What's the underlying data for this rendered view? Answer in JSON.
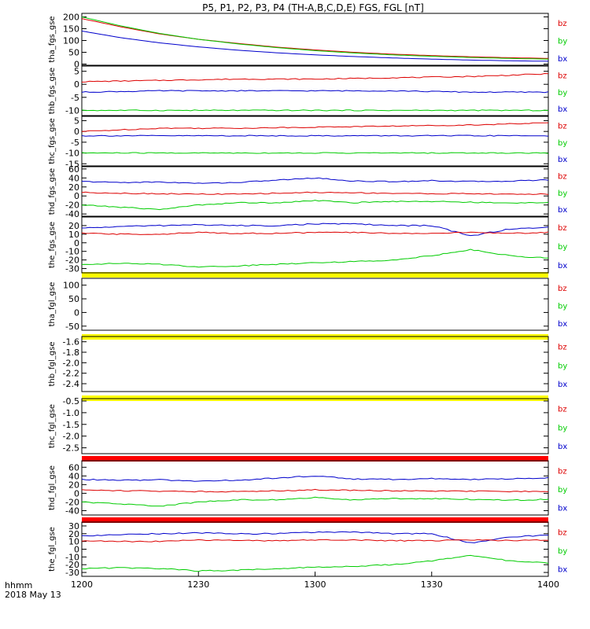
{
  "title": "P5, P1, P2, P3, P4 (TH-A,B,C,D,E) FGS, FGL [nT]",
  "x_axis": {
    "tick_labels": [
      "1200",
      "1230",
      "1300",
      "1330",
      "1400"
    ],
    "caption_line1": "hhmm",
    "caption_line2": "2018 May 13"
  },
  "colors": {
    "bz": "#dd0000",
    "by": "#00cc00",
    "bx": "#0000cc",
    "flag_yellow": "#ffff00",
    "flag_red": "#ff0000",
    "frame": "#000000"
  },
  "chart_data": [
    {
      "type": "line",
      "panel": "tha_fgs_gse",
      "ylabel": "tha_fgs_gse",
      "ylim": [
        -5,
        215
      ],
      "ytick_labels": [
        "0",
        "50",
        "100",
        "150",
        "200"
      ],
      "legend": [
        "bz",
        "by",
        "bx"
      ],
      "x_range": [
        "12:00",
        "14:00"
      ],
      "x": [
        "12:00",
        "12:10",
        "12:20",
        "12:30",
        "12:40",
        "12:50",
        "13:00",
        "13:10",
        "13:20",
        "13:30",
        "13:40",
        "13:50",
        "14:00"
      ],
      "series": [
        {
          "name": "bz",
          "values": [
            193,
            158,
            128,
            105,
            88,
            72,
            60,
            50,
            42,
            36,
            31,
            27,
            24
          ]
        },
        {
          "name": "by",
          "values": [
            200,
            162,
            130,
            105,
            86,
            70,
            57,
            47,
            39,
            33,
            28,
            24,
            21
          ]
        },
        {
          "name": "bx",
          "values": [
            140,
            112,
            90,
            73,
            59,
            48,
            39,
            32,
            26,
            21,
            17,
            14,
            12
          ]
        }
      ]
    },
    {
      "type": "line",
      "panel": "thb_fgs_gse",
      "ylabel": "thb_fgs_gse",
      "ylim": [
        -12,
        7
      ],
      "ytick_labels": [
        "5",
        "0",
        "-5",
        "-10"
      ],
      "legend": [
        "bz",
        "by",
        "bx"
      ],
      "x": [
        "12:00",
        "12:20",
        "12:40",
        "13:00",
        "13:20",
        "13:40",
        "14:00"
      ],
      "series": [
        {
          "name": "bz",
          "values": [
            1,
            1.5,
            2,
            2,
            2.5,
            3,
            4
          ]
        },
        {
          "name": "bx",
          "values": [
            -3,
            -2.5,
            -2.5,
            -2.5,
            -2.5,
            -3,
            -3
          ]
        },
        {
          "name": "by",
          "values": [
            -10,
            -10,
            -10,
            -10,
            -10,
            -10,
            -10
          ]
        }
      ]
    },
    {
      "type": "line",
      "panel": "thc_fgs_gse",
      "ylabel": "thc_fgs_gse",
      "ylim": [
        -16,
        7
      ],
      "ytick_labels": [
        "5",
        "0",
        "-5",
        "-10",
        "-15"
      ],
      "legend": [
        "bz",
        "by",
        "bx"
      ],
      "x": [
        "12:00",
        "12:20",
        "12:40",
        "13:00",
        "13:20",
        "13:40",
        "14:00"
      ],
      "series": [
        {
          "name": "bz",
          "values": [
            0,
            1.5,
            1.5,
            2,
            2.5,
            3,
            4
          ]
        },
        {
          "name": "bx",
          "values": [
            -2,
            -2,
            -2,
            -2,
            -2,
            -2,
            -2
          ]
        },
        {
          "name": "by",
          "values": [
            -10,
            -10,
            -10,
            -10,
            -10,
            -10,
            -10
          ]
        }
      ]
    },
    {
      "type": "line",
      "panel": "thd_fgs_gse",
      "ylabel": "thd_fgs_gse",
      "ylim": [
        -45,
        65
      ],
      "ytick_labels": [
        "60",
        "40",
        "20",
        "0",
        "-20",
        "-40"
      ],
      "legend": [
        "bz",
        "by",
        "bx"
      ],
      "x": [
        "12:00",
        "12:10",
        "12:20",
        "12:30",
        "12:40",
        "12:50",
        "13:00",
        "13:10",
        "13:20",
        "13:30",
        "13:40",
        "13:50",
        "14:00"
      ],
      "series": [
        {
          "name": "bx",
          "values": [
            32,
            30,
            31,
            28,
            30,
            35,
            40,
            33,
            32,
            34,
            32,
            33,
            36
          ]
        },
        {
          "name": "bz",
          "values": [
            8,
            6,
            5,
            4,
            4,
            6,
            8,
            7,
            6,
            5,
            5,
            4,
            4
          ]
        },
        {
          "name": "by",
          "values": [
            -20,
            -25,
            -30,
            -20,
            -15,
            -15,
            -10,
            -15,
            -12,
            -12,
            -14,
            -16,
            -14
          ]
        }
      ]
    },
    {
      "type": "line",
      "panel": "the_fgs_gse",
      "ylabel": "the_fgs_gse",
      "ylim": [
        -35,
        30
      ],
      "ytick_labels": [
        "20",
        "10",
        "0",
        "-10",
        "-20",
        "-30"
      ],
      "legend": [
        "bz",
        "by",
        "bx"
      ],
      "x": [
        "12:00",
        "12:10",
        "12:20",
        "12:30",
        "12:40",
        "12:50",
        "13:00",
        "13:10",
        "13:20",
        "13:30",
        "13:40",
        "13:50",
        "14:00"
      ],
      "series": [
        {
          "name": "bx",
          "values": [
            17,
            19,
            20,
            21,
            20,
            20,
            22,
            22,
            20,
            20,
            8,
            16,
            18
          ]
        },
        {
          "name": "bz",
          "values": [
            11,
            10,
            10,
            12,
            11,
            11,
            12,
            12,
            11,
            11,
            12,
            11,
            12
          ]
        },
        {
          "name": "by",
          "values": [
            -25,
            -24,
            -25,
            -28,
            -27,
            -25,
            -23,
            -22,
            -20,
            -15,
            -8,
            -15,
            -18
          ]
        }
      ]
    },
    {
      "type": "line",
      "panel": "tha_fgl_gse",
      "ylabel": "tha_fgl_gse",
      "ylim": [
        -65,
        125
      ],
      "ytick_labels": [
        "100",
        "50",
        "0",
        "-50"
      ],
      "legend": [
        "bz",
        "by",
        "bx"
      ],
      "series": []
    },
    {
      "type": "line",
      "panel": "thb_fgl_gse",
      "ylabel": "thb_fgl_gse",
      "ylim": [
        -2.55,
        -1.5
      ],
      "ytick_labels": [
        "-1.6",
        "-1.8",
        "-2.0",
        "-2.2",
        "-2.4"
      ],
      "legend": [
        "bz",
        "by",
        "bx"
      ],
      "series": []
    },
    {
      "type": "line",
      "panel": "thc_fgl_gse",
      "ylabel": "thc_fgl_gse",
      "ylim": [
        -2.75,
        -0.4
      ],
      "ytick_labels": [
        "-0.5",
        "-1.0",
        "-1.5",
        "-2.0",
        "-2.5"
      ],
      "legend": [
        "bz",
        "by",
        "bx"
      ],
      "series": []
    },
    {
      "type": "line",
      "panel": "thd_fgl_gse",
      "ylabel": "thd_fgl_gse",
      "ylim": [
        -50,
        75
      ],
      "ytick_labels": [
        "60",
        "40",
        "20",
        "0",
        "-20",
        "-40"
      ],
      "legend": [
        "bz",
        "by",
        "bx"
      ],
      "x": [
        "12:00",
        "12:10",
        "12:20",
        "12:30",
        "12:40",
        "12:50",
        "13:00",
        "13:10",
        "13:20",
        "13:30",
        "13:40",
        "13:50",
        "14:00"
      ],
      "series": [
        {
          "name": "bx",
          "values": [
            32,
            30,
            31,
            28,
            30,
            35,
            40,
            33,
            32,
            34,
            32,
            33,
            36
          ]
        },
        {
          "name": "bz",
          "values": [
            8,
            6,
            5,
            4,
            4,
            6,
            8,
            7,
            6,
            5,
            5,
            4,
            4
          ]
        },
        {
          "name": "by",
          "values": [
            -20,
            -25,
            -30,
            -20,
            -15,
            -15,
            -10,
            -15,
            -12,
            -12,
            -14,
            -16,
            -14
          ]
        }
      ]
    },
    {
      "type": "line",
      "panel": "the_fgl_gse",
      "ylabel": "the_fgl_gse",
      "ylim": [
        -35,
        35
      ],
      "ytick_labels": [
        "30",
        "20",
        "10",
        "0",
        "-10",
        "-20",
        "-30"
      ],
      "legend": [
        "bz",
        "by",
        "bx"
      ],
      "x": [
        "12:00",
        "12:10",
        "12:20",
        "12:30",
        "12:40",
        "12:50",
        "13:00",
        "13:10",
        "13:20",
        "13:30",
        "13:40",
        "13:50",
        "14:00"
      ],
      "series": [
        {
          "name": "bx",
          "values": [
            17,
            19,
            20,
            21,
            20,
            20,
            22,
            22,
            20,
            20,
            8,
            16,
            18
          ]
        },
        {
          "name": "bz",
          "values": [
            11,
            10,
            10,
            12,
            11,
            11,
            12,
            12,
            11,
            11,
            12,
            11,
            12
          ]
        },
        {
          "name": "by",
          "values": [
            -25,
            -24,
            -25,
            -28,
            -27,
            -25,
            -23,
            -22,
            -20,
            -15,
            -8,
            -15,
            -18
          ]
        }
      ]
    }
  ]
}
